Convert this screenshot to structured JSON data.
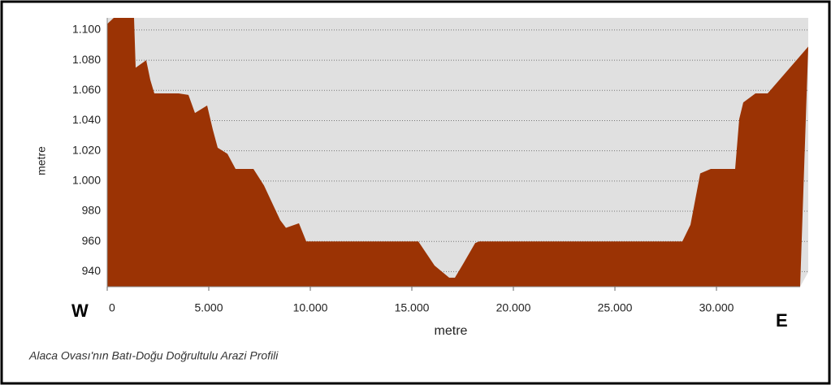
{
  "chart_data": {
    "type": "area",
    "color": "#9b3304",
    "caption": "Alaca Ovası'nın Batı-Doğu Doğrultulu Arazi Profili",
    "xlabel": "metre",
    "ylabel": "metre",
    "left_label": "W",
    "right_label": "E",
    "x": [
      0,
      320,
      1320,
      1400,
      1920,
      2120,
      2320,
      3520,
      4000,
      4320,
      4920,
      5200,
      5440,
      5920,
      6320,
      7200,
      7720,
      8520,
      8800,
      9440,
      9800,
      15320,
      16120,
      16840,
      17120,
      17520,
      18120,
      18320,
      28320,
      28720,
      29200,
      29720,
      30920,
      31120,
      31320,
      31920,
      32520,
      34520
    ],
    "values": [
      1104,
      1108,
      1108,
      1075,
      1080,
      1067,
      1058,
      1058,
      1057,
      1045,
      1050,
      1034,
      1022,
      1018,
      1008,
      1008,
      997,
      974,
      969,
      972,
      960,
      960,
      944,
      936,
      936,
      945,
      959,
      960,
      960,
      971,
      1005,
      1008,
      1008,
      1041,
      1052,
      1058,
      1058,
      1089
    ],
    "xlim": [
      0,
      34520
    ],
    "ylim": [
      930,
      1108
    ],
    "xticks": [
      0,
      {
        "value": 5000,
        "label": "5.000"
      },
      {
        "value": 10000,
        "label": "10.000"
      },
      {
        "value": 15000,
        "label": "15.000"
      },
      {
        "value": 20000,
        "label": "20.000"
      },
      {
        "value": 25000,
        "label": "25.000"
      },
      {
        "value": 30000,
        "label": "30.000"
      }
    ],
    "yticks": [
      940,
      960,
      980,
      {
        "value": 1000,
        "label": "1.000"
      },
      {
        "value": 1020,
        "label": "1.020"
      },
      {
        "value": 1040,
        "label": "1.040"
      },
      {
        "value": 1060,
        "label": "1.060"
      },
      {
        "value": 1080,
        "label": "1.080"
      },
      {
        "value": 1100,
        "label": "1.100"
      }
    ],
    "grid": true
  }
}
